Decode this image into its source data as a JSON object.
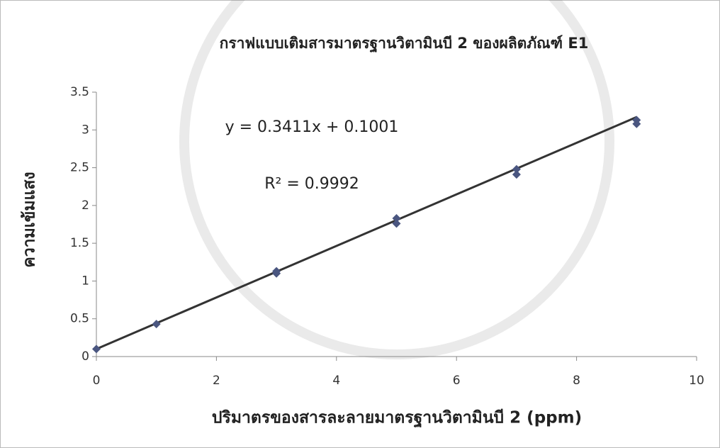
{
  "chart_data": {
    "type": "scatter",
    "title": "กราฟแบบเติมสารมาตรฐานวิตามินบี 2 ของผลิตภัณฑ์ E1",
    "x_label": "ปริมาตรของสารละลายมาตรฐานวิตามินบี 2 (ppm)",
    "y_label": "ความเข้มแสง",
    "annotations": [
      "y = 0.3411x + 0.1001",
      "R² = 0.9992"
    ],
    "x": [
      0,
      1,
      3,
      3,
      5,
      5,
      7,
      7,
      9,
      9
    ],
    "values": [
      0.1,
      0.43,
      1.1,
      1.13,
      1.76,
      1.83,
      2.41,
      2.48,
      3.08,
      3.13
    ],
    "color": "#4a5680",
    "trendline": {
      "x": [
        0,
        9
      ],
      "y": [
        0.1001,
        3.17
      ],
      "color": "#333333"
    },
    "xlim": [
      0,
      10
    ],
    "xticks": [
      0,
      2,
      4,
      6,
      8,
      10
    ],
    "ylim": [
      0,
      3.5
    ],
    "yticks": [
      0,
      0.5,
      1,
      1.5,
      2,
      2.5,
      3,
      3.5
    ],
    "grid": false
  }
}
